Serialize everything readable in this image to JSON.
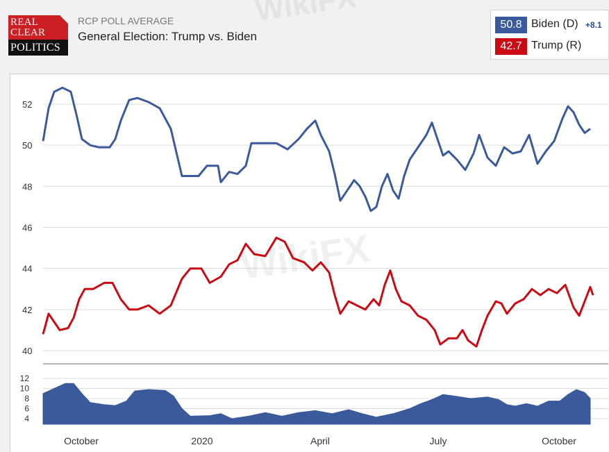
{
  "logo": {
    "line1": "REAL",
    "line2": "CLEAR",
    "line3": "POLITICS"
  },
  "header": {
    "subtitle": "RCP POLL AVERAGE",
    "title": "General Election: Trump vs. Biden"
  },
  "legend": {
    "biden": {
      "value": "50.8",
      "label": "Biden (D)",
      "spread": "+8.1",
      "color": "#3a5a9c"
    },
    "trump": {
      "value": "42.7",
      "label": "Trump (R)",
      "color": "#cc0a14"
    }
  },
  "watermark": "WikiFX",
  "chart_data": [
    {
      "type": "line",
      "title": "",
      "xlabel": "",
      "ylabel": "",
      "ylim": [
        39.5,
        53.5
      ],
      "yticks": [
        "40",
        "42",
        "44",
        "46",
        "48",
        "50",
        "52"
      ],
      "xticks": [
        "October",
        "2020",
        "April",
        "July",
        "October"
      ],
      "grid": true,
      "series": [
        {
          "name": "Biden (D)",
          "color": "#3a5a9c",
          "points": [
            [
              0,
              50.2
            ],
            [
              0.01,
              51.8
            ],
            [
              0.02,
              52.6
            ],
            [
              0.035,
              52.8
            ],
            [
              0.05,
              52.6
            ],
            [
              0.06,
              51.5
            ],
            [
              0.07,
              50.3
            ],
            [
              0.085,
              50.0
            ],
            [
              0.1,
              49.9
            ],
            [
              0.12,
              49.9
            ],
            [
              0.13,
              50.3
            ],
            [
              0.14,
              51.2
            ],
            [
              0.155,
              52.2
            ],
            [
              0.17,
              52.3
            ],
            [
              0.19,
              52.1
            ],
            [
              0.21,
              51.8
            ],
            [
              0.23,
              50.8
            ],
            [
              0.25,
              48.5
            ],
            [
              0.28,
              48.5
            ],
            [
              0.295,
              49.0
            ],
            [
              0.315,
              49.0
            ],
            [
              0.32,
              48.2
            ],
            [
              0.335,
              48.7
            ],
            [
              0.35,
              48.6
            ],
            [
              0.365,
              49.0
            ],
            [
              0.375,
              50.1
            ],
            [
              0.4,
              50.1
            ],
            [
              0.42,
              50.1
            ],
            [
              0.44,
              49.8
            ],
            [
              0.46,
              50.3
            ],
            [
              0.475,
              50.8
            ],
            [
              0.49,
              51.2
            ],
            [
              0.5,
              50.5
            ],
            [
              0.515,
              49.7
            ],
            [
              0.525,
              48.6
            ],
            [
              0.535,
              47.3
            ],
            [
              0.55,
              47.9
            ],
            [
              0.56,
              48.3
            ],
            [
              0.57,
              48.0
            ],
            [
              0.58,
              47.5
            ],
            [
              0.59,
              46.8
            ],
            [
              0.6,
              47.0
            ],
            [
              0.61,
              48.0
            ],
            [
              0.62,
              48.6
            ],
            [
              0.63,
              47.8
            ],
            [
              0.64,
              47.4
            ],
            [
              0.65,
              48.5
            ],
            [
              0.66,
              49.3
            ],
            [
              0.675,
              49.9
            ],
            [
              0.69,
              50.5
            ],
            [
              0.7,
              51.1
            ],
            [
              0.71,
              50.3
            ],
            [
              0.72,
              49.5
            ],
            [
              0.73,
              49.7
            ],
            [
              0.745,
              49.3
            ],
            [
              0.76,
              48.8
            ],
            [
              0.775,
              49.6
            ],
            [
              0.785,
              50.5
            ],
            [
              0.8,
              49.4
            ],
            [
              0.815,
              49.0
            ],
            [
              0.83,
              49.9
            ],
            [
              0.845,
              49.6
            ],
            [
              0.86,
              49.7
            ],
            [
              0.875,
              50.5
            ],
            [
              0.89,
              49.1
            ],
            [
              0.905,
              49.7
            ],
            [
              0.92,
              50.2
            ],
            [
              0.935,
              51.3
            ],
            [
              0.945,
              51.9
            ],
            [
              0.955,
              51.6
            ],
            [
              0.965,
              51.0
            ],
            [
              0.975,
              50.6
            ],
            [
              0.985,
              50.8
            ]
          ]
        },
        {
          "name": "Trump (R)",
          "color": "#cc0a14",
          "points": [
            [
              0,
              40.8
            ],
            [
              0.01,
              41.8
            ],
            [
              0.02,
              41.4
            ],
            [
              0.03,
              41.0
            ],
            [
              0.045,
              41.1
            ],
            [
              0.055,
              41.6
            ],
            [
              0.065,
              42.5
            ],
            [
              0.075,
              43.0
            ],
            [
              0.09,
              43.0
            ],
            [
              0.11,
              43.3
            ],
            [
              0.125,
              43.3
            ],
            [
              0.14,
              42.5
            ],
            [
              0.155,
              42.0
            ],
            [
              0.17,
              42.0
            ],
            [
              0.19,
              42.2
            ],
            [
              0.21,
              41.8
            ],
            [
              0.23,
              42.2
            ],
            [
              0.25,
              43.5
            ],
            [
              0.265,
              44.0
            ],
            [
              0.285,
              44.0
            ],
            [
              0.3,
              43.3
            ],
            [
              0.32,
              43.6
            ],
            [
              0.335,
              44.2
            ],
            [
              0.35,
              44.4
            ],
            [
              0.365,
              45.2
            ],
            [
              0.38,
              44.7
            ],
            [
              0.4,
              44.6
            ],
            [
              0.42,
              45.5
            ],
            [
              0.435,
              45.3
            ],
            [
              0.45,
              44.5
            ],
            [
              0.47,
              44.3
            ],
            [
              0.485,
              43.9
            ],
            [
              0.5,
              44.3
            ],
            [
              0.515,
              43.8
            ],
            [
              0.525,
              42.7
            ],
            [
              0.535,
              41.8
            ],
            [
              0.55,
              42.4
            ],
            [
              0.565,
              42.2
            ],
            [
              0.58,
              42.0
            ],
            [
              0.595,
              42.5
            ],
            [
              0.605,
              42.2
            ],
            [
              0.615,
              43.2
            ],
            [
              0.625,
              43.9
            ],
            [
              0.635,
              43.0
            ],
            [
              0.645,
              42.4
            ],
            [
              0.66,
              42.2
            ],
            [
              0.675,
              41.7
            ],
            [
              0.69,
              41.5
            ],
            [
              0.705,
              41.0
            ],
            [
              0.715,
              40.3
            ],
            [
              0.73,
              40.6
            ],
            [
              0.745,
              40.6
            ],
            [
              0.755,
              41.0
            ],
            [
              0.765,
              40.5
            ],
            [
              0.78,
              40.2
            ],
            [
              0.79,
              41.0
            ],
            [
              0.8,
              41.7
            ],
            [
              0.815,
              42.4
            ],
            [
              0.825,
              42.3
            ],
            [
              0.835,
              41.8
            ],
            [
              0.85,
              42.3
            ],
            [
              0.865,
              42.5
            ],
            [
              0.88,
              43.0
            ],
            [
              0.895,
              42.7
            ],
            [
              0.91,
              43.0
            ],
            [
              0.925,
              42.8
            ],
            [
              0.94,
              43.2
            ],
            [
              0.955,
              42.1
            ],
            [
              0.965,
              41.7
            ],
            [
              0.975,
              42.4
            ],
            [
              0.985,
              43.1
            ],
            [
              0.99,
              42.7
            ]
          ]
        }
      ]
    },
    {
      "type": "area",
      "title": "",
      "xlabel": "",
      "ylabel": "",
      "ylim": [
        3,
        13
      ],
      "yticks": [
        "4",
        "6",
        "8",
        "10",
        "12"
      ],
      "grid": true,
      "series": [
        {
          "name": "",
          "color": "#3a5a9c",
          "points": [
            [
              0,
              9.0
            ],
            [
              0.02,
              10.0
            ],
            [
              0.04,
              11.0
            ],
            [
              0.055,
              11.0
            ],
            [
              0.07,
              9.0
            ],
            [
              0.085,
              7.2
            ],
            [
              0.11,
              6.8
            ],
            [
              0.13,
              6.6
            ],
            [
              0.15,
              7.5
            ],
            [
              0.165,
              9.5
            ],
            [
              0.19,
              9.8
            ],
            [
              0.22,
              9.6
            ],
            [
              0.235,
              8.5
            ],
            [
              0.25,
              6.0
            ],
            [
              0.265,
              4.5
            ],
            [
              0.3,
              4.6
            ],
            [
              0.32,
              5.0
            ],
            [
              0.34,
              4.0
            ],
            [
              0.37,
              4.5
            ],
            [
              0.4,
              5.2
            ],
            [
              0.43,
              4.5
            ],
            [
              0.46,
              5.2
            ],
            [
              0.49,
              5.6
            ],
            [
              0.52,
              5.0
            ],
            [
              0.55,
              5.8
            ],
            [
              0.575,
              5.0
            ],
            [
              0.6,
              4.3
            ],
            [
              0.63,
              5.0
            ],
            [
              0.66,
              6.0
            ],
            [
              0.68,
              7.0
            ],
            [
              0.7,
              7.8
            ],
            [
              0.72,
              8.8
            ],
            [
              0.74,
              8.5
            ],
            [
              0.77,
              8.0
            ],
            [
              0.8,
              8.3
            ],
            [
              0.82,
              7.8
            ],
            [
              0.835,
              6.8
            ],
            [
              0.85,
              6.5
            ],
            [
              0.87,
              7.0
            ],
            [
              0.89,
              6.5
            ],
            [
              0.91,
              7.5
            ],
            [
              0.93,
              7.5
            ],
            [
              0.945,
              8.8
            ],
            [
              0.96,
              9.8
            ],
            [
              0.975,
              9.2
            ],
            [
              0.985,
              8.0
            ]
          ]
        }
      ]
    }
  ]
}
